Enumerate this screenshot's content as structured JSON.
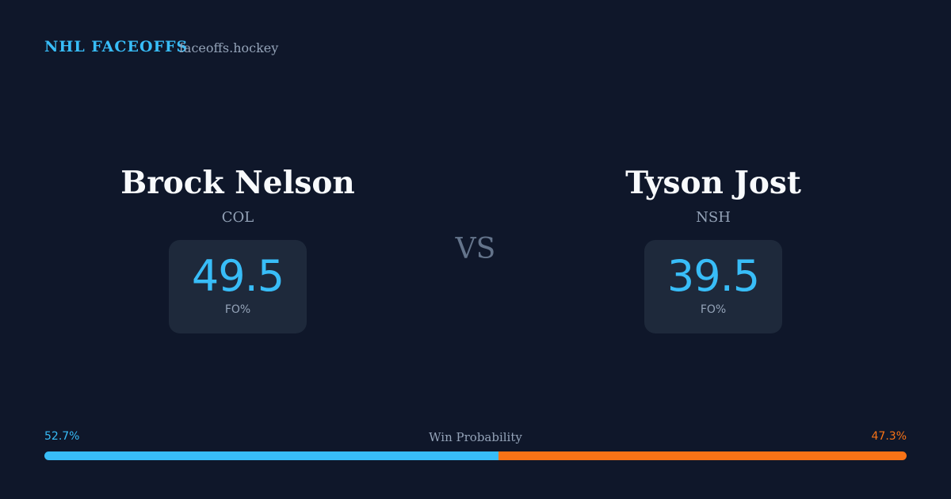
{
  "header": {
    "title": "NHL FACEOFFS",
    "site": "faceoffs.hockey"
  },
  "players": [
    {
      "name": "Brock Nelson",
      "team": "COL",
      "stat": 49.5,
      "stat_label": "FO%"
    },
    {
      "name": "Tyson Jost",
      "team": "NSH",
      "stat": 39.5,
      "stat_label": "FO%"
    }
  ],
  "versus": "VS",
  "win_probability": {
    "label": "Win Probability",
    "values": [
      52.7,
      47.3
    ],
    "value_labels": [
      "52.7%",
      "47.3%"
    ],
    "colors": [
      "#38bdf8",
      "#f97316"
    ]
  }
}
